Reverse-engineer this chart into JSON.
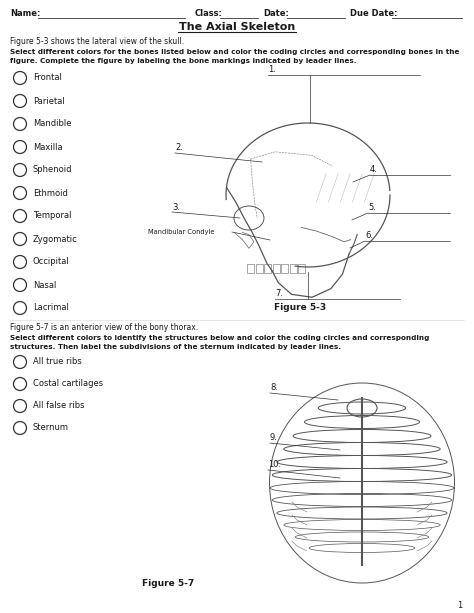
{
  "title": "The Axial Skeleton",
  "fig53_caption": "Figure 5-3 shows the lateral view of the skull.",
  "fig53_instruction1": "Select different colors for the bones listed below and color the coding circles and corresponding bones in the",
  "fig53_instruction2": "figure. Complete the figure by labeling the bone markings indicated by leader lines.",
  "skull_labels": [
    "Frontal",
    "Parietal",
    "Mandible",
    "Maxilla",
    "Sphenoid",
    "Ethmoid",
    "Temporal",
    "Zygomatic",
    "Occipital",
    "Nasal",
    "Lacrimal"
  ],
  "mandibular_condyle_label": "Mandibular Condyle",
  "fig53_label": "Figure 5-3",
  "fig57_caption": "Figure 5-7 is an anterior view of the bony thorax.",
  "fig57_instruction1": "Select different colors to identify the structures below and color the coding circles and corresponding",
  "fig57_instruction2": "structures. Then label the subdivisions of the sternum indicated by leader lines.",
  "thorax_labels": [
    "All true ribs",
    "Costal cartilages",
    "All false ribs",
    "Sternum"
  ],
  "fig57_label": "Figure 5-7",
  "page_num": "1",
  "bg_color": "#ffffff",
  "text_color": "#1a1a1a",
  "circle_color": "#333333"
}
